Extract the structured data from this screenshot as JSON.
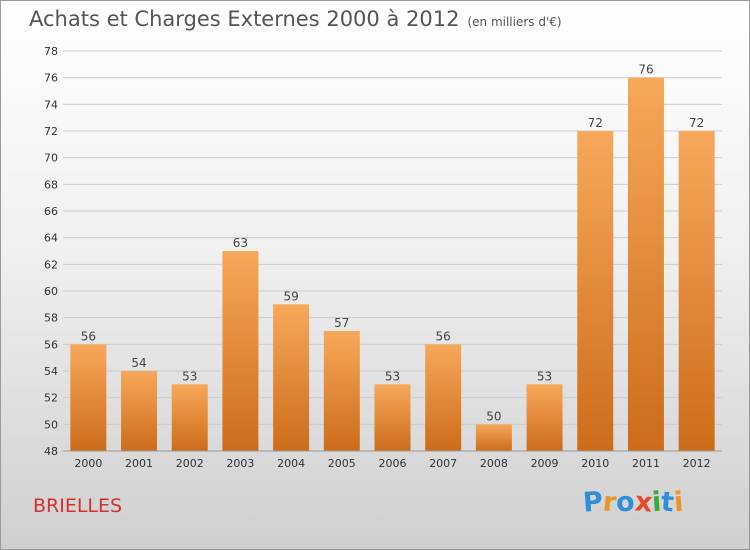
{
  "header": {
    "title": "Achats et Charges Externes 2000 à 2012",
    "unit": "(en milliers d'€)"
  },
  "footer": {
    "commune": "BRIELLES",
    "logo": {
      "text": "Proxiti",
      "letters": [
        {
          "ch": "P",
          "color": "#2e8fd8"
        },
        {
          "ch": "r",
          "color": "#e8962a"
        },
        {
          "ch": "o",
          "color": "#2e8fd8"
        },
        {
          "ch": "x",
          "color": "#e64b2a"
        },
        {
          "ch": "i",
          "color": "#3aaa35"
        },
        {
          "ch": "t",
          "color": "#2e8fd8"
        },
        {
          "ch": "i",
          "color": "#e8962a"
        }
      ]
    }
  },
  "colors": {
    "bar_top": "#f7a85a",
    "bar_bottom": "#cc6c1a",
    "grid": "#cccccc"
  },
  "chart_data": {
    "type": "bar",
    "title": "Achats et Charges Externes 2000 à 2012",
    "subtitle": "(en milliers d'€)",
    "categories": [
      "2000",
      "2001",
      "2002",
      "2003",
      "2004",
      "2005",
      "2006",
      "2007",
      "2008",
      "2009",
      "2010",
      "2011",
      "2012"
    ],
    "values": [
      56,
      54,
      53,
      63,
      59,
      57,
      53,
      56,
      50,
      53,
      72,
      76,
      72
    ],
    "ylim": [
      48,
      78
    ],
    "ytick_step": 2,
    "grid": true,
    "data_labels": true
  }
}
